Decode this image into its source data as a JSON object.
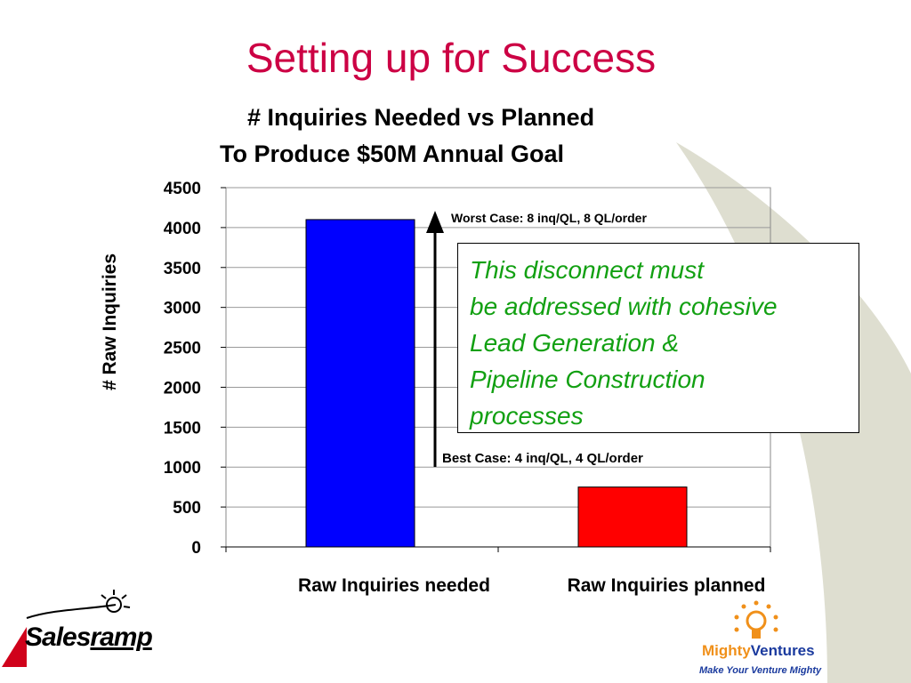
{
  "slide": {
    "title": "Setting up for Success"
  },
  "chart_data": {
    "type": "bar",
    "title_line1": "# Inquiries Needed vs Planned",
    "title_line2": "To Produce $50M Annual Goal",
    "categories": [
      "Raw Inquiries needed",
      "Raw Inquiries planned"
    ],
    "values": [
      4100,
      750
    ],
    "colors": [
      "#0000ff",
      "#ff0000"
    ],
    "ylabel": "# Raw Inquiries",
    "ylim": [
      0,
      4500
    ],
    "yticks": [
      0,
      500,
      1000,
      1500,
      2000,
      2500,
      3000,
      3500,
      4000,
      4500
    ],
    "grid": true,
    "annotations": {
      "worst_case": "Worst Case: 8 inq/QL,  8 QL/order",
      "best_case": "Best Case: 4 inq/QL,  4 QL/order"
    }
  },
  "callout": {
    "lines": [
      "This disconnect must",
      "be addressed with cohesive",
      "Lead Generation &",
      "Pipeline Construction",
      "processes"
    ],
    "color": "#12a012"
  },
  "logos": {
    "salesramp": {
      "part1": "Sales",
      "part2": "ramp"
    },
    "mighty_ventures": {
      "part1": "Mighty",
      "part2": "Ventures",
      "tagline": "Make Your Venture Mighty"
    }
  }
}
